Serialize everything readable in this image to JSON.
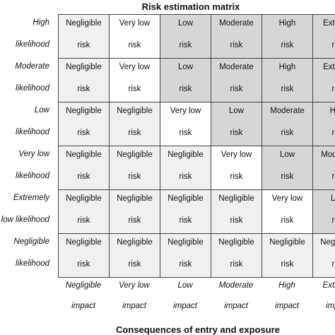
{
  "title": "Risk estimation matrix",
  "footer": "Consequences of entry and exposure",
  "row_labels": [
    {
      "line1": "High",
      "line2": "likelihood"
    },
    {
      "line1": "Moderate",
      "line2": "likelihood"
    },
    {
      "line1": "Low",
      "line2": "likelihood"
    },
    {
      "line1": "Very low",
      "line2": "likelihood"
    },
    {
      "line1": "Extremely",
      "line2": "low likelihood"
    },
    {
      "line1": "Negligible",
      "line2": "likelihood"
    }
  ],
  "column_labels": [
    {
      "line1": "Negligible",
      "line2": "impact"
    },
    {
      "line1": "Very low",
      "line2": "impact"
    },
    {
      "line1": "Low",
      "line2": "impact"
    },
    {
      "line1": "Moderate",
      "line2": "impact"
    },
    {
      "line1": "High",
      "line2": "impact"
    },
    {
      "line1": "Extreme",
      "line2": "impact"
    }
  ],
  "table": {
    "rows": [
      [
        {
          "level": "Negligible",
          "unit": "risk",
          "fill": "#f0f0f0"
        },
        {
          "level": "Very low",
          "unit": "risk",
          "fill": "#ffffff"
        },
        {
          "level": "Low",
          "unit": "risk",
          "fill": "#d6d6d6"
        },
        {
          "level": "Moderate",
          "unit": "risk",
          "fill": "#d6d6d6"
        },
        {
          "level": "High",
          "unit": "risk",
          "fill": "#d6d6d6"
        },
        {
          "level": "Extreme",
          "unit": "risk",
          "fill": "#d6d6d6"
        }
      ],
      [
        {
          "level": "Negligible",
          "unit": "risk",
          "fill": "#f0f0f0"
        },
        {
          "level": "Very low",
          "unit": "risk",
          "fill": "#ffffff"
        },
        {
          "level": "Low",
          "unit": "risk",
          "fill": "#d6d6d6"
        },
        {
          "level": "Moderate",
          "unit": "risk",
          "fill": "#d6d6d6"
        },
        {
          "level": "High",
          "unit": "risk",
          "fill": "#d6d6d6"
        },
        {
          "level": "Extreme",
          "unit": "risk",
          "fill": "#d6d6d6"
        }
      ],
      [
        {
          "level": "Negligible",
          "unit": "risk",
          "fill": "#f0f0f0"
        },
        {
          "level": "Negligible",
          "unit": "risk",
          "fill": "#f0f0f0"
        },
        {
          "level": "Very low",
          "unit": "risk",
          "fill": "#ffffff"
        },
        {
          "level": "Low",
          "unit": "risk",
          "fill": "#d6d6d6"
        },
        {
          "level": "Moderate",
          "unit": "risk",
          "fill": "#d6d6d6"
        },
        {
          "level": "High",
          "unit": "risk",
          "fill": "#d6d6d6"
        }
      ],
      [
        {
          "level": "Negligible",
          "unit": "risk",
          "fill": "#f0f0f0"
        },
        {
          "level": "Negligible",
          "unit": "risk",
          "fill": "#f0f0f0"
        },
        {
          "level": "Negligible",
          "unit": "risk",
          "fill": "#f0f0f0"
        },
        {
          "level": "Very low",
          "unit": "risk",
          "fill": "#ffffff"
        },
        {
          "level": "Low",
          "unit": "risk",
          "fill": "#d6d6d6"
        },
        {
          "level": "Moderate",
          "unit": "risk",
          "fill": "#d6d6d6"
        }
      ],
      [
        {
          "level": "Negligible",
          "unit": "risk",
          "fill": "#f0f0f0"
        },
        {
          "level": "Negligible",
          "unit": "risk",
          "fill": "#f0f0f0"
        },
        {
          "level": "Negligible",
          "unit": "risk",
          "fill": "#f0f0f0"
        },
        {
          "level": "Negligible",
          "unit": "risk",
          "fill": "#f0f0f0"
        },
        {
          "level": "Very low",
          "unit": "risk",
          "fill": "#ffffff"
        },
        {
          "level": "Low",
          "unit": "risk",
          "fill": "#d6d6d6"
        }
      ],
      [
        {
          "level": "Negligible",
          "unit": "risk",
          "fill": "#f0f0f0"
        },
        {
          "level": "Negligible",
          "unit": "risk",
          "fill": "#f0f0f0"
        },
        {
          "level": "Negligible",
          "unit": "risk",
          "fill": "#f0f0f0"
        },
        {
          "level": "Negligible",
          "unit": "risk",
          "fill": "#f0f0f0"
        },
        {
          "level": "Negligible",
          "unit": "risk",
          "fill": "#f0f0f0"
        },
        {
          "level": "Negligible",
          "unit": "risk",
          "fill": "#f0f0f0"
        }
      ]
    ]
  }
}
